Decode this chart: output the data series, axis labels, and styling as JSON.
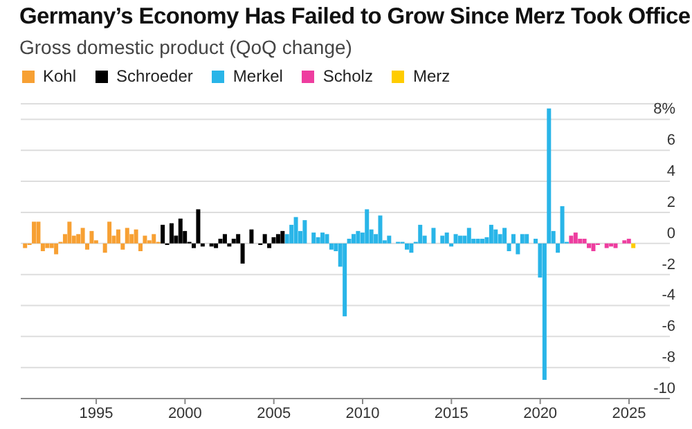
{
  "chart_data": {
    "type": "bar",
    "title": "Germany’s Economy Has Failed to Grow Since Merz Took Office",
    "subtitle": "Gross domestic product (QoQ change)",
    "series": [
      {
        "name": "Kohl",
        "color": "#f7a033",
        "x": [
          1991,
          1991.25,
          1991.5,
          1991.75,
          1992,
          1992.25,
          1992.5,
          1992.75,
          1993,
          1993.25,
          1993.5,
          1993.75,
          1994,
          1994.25,
          1994.5,
          1994.75,
          1995,
          1995.25,
          1995.5,
          1995.75,
          1996,
          1996.25,
          1996.5,
          1996.75,
          1997,
          1997.25,
          1997.5,
          1997.75,
          1998,
          1998.25,
          1998.5
        ],
        "values": [
          -0.3,
          -0.1,
          1.4,
          1.4,
          -0.5,
          -0.3,
          -0.3,
          -0.7,
          0.1,
          0.6,
          1.4,
          0.5,
          0.6,
          1.0,
          -0.4,
          0.8,
          0.2,
          0.0,
          -0.6,
          1.4,
          0.5,
          0.9,
          -0.4,
          1.0,
          0.6,
          0.9,
          -0.5,
          0.5,
          0.2,
          0.6,
          0.1
        ]
      },
      {
        "name": "Schroeder",
        "color": "#000000",
        "x": [
          1998.75,
          1999,
          1999.25,
          1999.5,
          1999.75,
          2000,
          2000.25,
          2000.5,
          2000.75,
          2001,
          2001.25,
          2001.5,
          2001.75,
          2002,
          2002.25,
          2002.5,
          2002.75,
          2003,
          2003.25,
          2003.5,
          2003.75,
          2004,
          2004.25,
          2004.5,
          2004.75,
          2005,
          2005.25,
          2005.5
        ],
        "values": [
          1.2,
          -0.1,
          1.3,
          0.5,
          1.6,
          0.8,
          0.1,
          -0.3,
          2.2,
          -0.2,
          0.0,
          -0.2,
          -0.3,
          0.3,
          0.6,
          -0.2,
          0.3,
          0.6,
          -1.3,
          0.0,
          0.9,
          0.0,
          -0.1,
          0.6,
          -0.3,
          0.4,
          0.6,
          0.8
        ]
      },
      {
        "name": "Merkel",
        "color": "#29b5e8",
        "x": [
          2005.75,
          2006,
          2006.25,
          2006.5,
          2006.75,
          2007,
          2007.25,
          2007.5,
          2007.75,
          2008,
          2008.25,
          2008.5,
          2008.75,
          2009,
          2009.25,
          2009.5,
          2009.75,
          2010,
          2010.25,
          2010.5,
          2010.75,
          2011,
          2011.25,
          2011.5,
          2011.75,
          2012,
          2012.25,
          2012.5,
          2012.75,
          2013,
          2013.25,
          2013.5,
          2013.75,
          2014,
          2014.25,
          2014.5,
          2014.75,
          2015,
          2015.25,
          2015.5,
          2015.75,
          2016,
          2016.25,
          2016.5,
          2016.75,
          2017,
          2017.25,
          2017.5,
          2017.75,
          2018,
          2018.25,
          2018.5,
          2018.75,
          2019,
          2019.25,
          2019.5,
          2019.75,
          2020,
          2020.25,
          2020.5,
          2020.75,
          2021,
          2021.25,
          2021.5
        ],
        "values": [
          0.6,
          1.2,
          1.7,
          0.8,
          1.5,
          0.0,
          0.7,
          0.4,
          0.7,
          0.6,
          -0.4,
          -0.5,
          -1.5,
          -4.7,
          0.3,
          0.6,
          0.8,
          0.7,
          2.2,
          0.9,
          0.6,
          1.8,
          0.2,
          0.5,
          0.0,
          0.1,
          0.1,
          -0.4,
          -0.6,
          0.1,
          1.2,
          0.5,
          0.0,
          1.0,
          0.0,
          0.5,
          0.7,
          -0.2,
          0.6,
          0.5,
          0.5,
          1.0,
          0.3,
          0.3,
          0.3,
          0.4,
          1.2,
          0.9,
          0.6,
          1.0,
          -0.5,
          0.6,
          -0.7,
          0.6,
          0.6,
          0.0,
          0.3,
          -2.2,
          -8.8,
          8.7,
          0.8,
          -0.6,
          2.4,
          0.1
        ]
      },
      {
        "name": "Scholz",
        "color": "#ee3d9f",
        "x": [
          2021.75,
          2022,
          2022.25,
          2022.5,
          2022.75,
          2023,
          2023.25,
          2023.5,
          2023.75,
          2024,
          2024.25,
          2024.5,
          2024.75,
          2025
        ],
        "values": [
          0.5,
          0.7,
          0.3,
          0.3,
          -0.3,
          -0.5,
          -0.1,
          0.0,
          -0.3,
          -0.2,
          -0.3,
          0.0,
          0.2,
          0.3
        ]
      },
      {
        "name": "Merz",
        "color": "#ffcc00",
        "x": [
          2025.25
        ],
        "values": [
          -0.3
        ]
      }
    ],
    "xlim": [
      1990.75,
      2027.3
    ],
    "xticks": [
      1995,
      2000,
      2005,
      2010,
      2015,
      2020,
      2025
    ],
    "ylim": [
      -10,
      9
    ],
    "yticks": [
      {
        "value": 8,
        "label": "8%"
      },
      6,
      4,
      2,
      0,
      -2,
      -4,
      -6,
      -8,
      -10
    ],
    "grid": "y",
    "legend": "top left"
  }
}
